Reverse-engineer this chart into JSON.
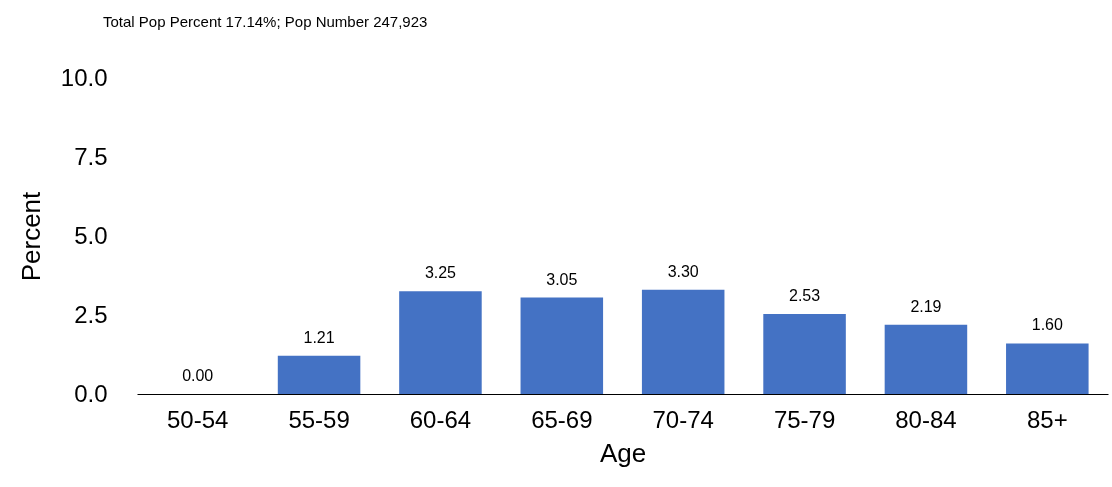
{
  "chart_data": {
    "type": "bar",
    "title": "Total Pop Percent 17.14%; Pop Number 247,923",
    "xlabel": "Age",
    "ylabel": "Percent",
    "categories": [
      "50-54",
      "55-59",
      "60-64",
      "65-69",
      "70-74",
      "75-79",
      "80-84",
      "85+"
    ],
    "values": [
      0.0,
      1.21,
      3.25,
      3.05,
      3.3,
      2.53,
      2.19,
      1.6
    ],
    "value_labels": [
      "0.00",
      "1.21",
      "3.25",
      "3.05",
      "3.30",
      "2.53",
      "2.19",
      "1.60"
    ],
    "color": "#4472c4",
    "ylim": [
      0,
      10
    ],
    "yticks": [
      {
        "value": 0,
        "label": "0.0"
      },
      {
        "value": 2.5,
        "label": "2.5"
      },
      {
        "value": 5,
        "label": "5.0"
      },
      {
        "value": 7.5,
        "label": "7.5"
      },
      {
        "value": 10,
        "label": "10.0"
      }
    ],
    "grid": false
  }
}
